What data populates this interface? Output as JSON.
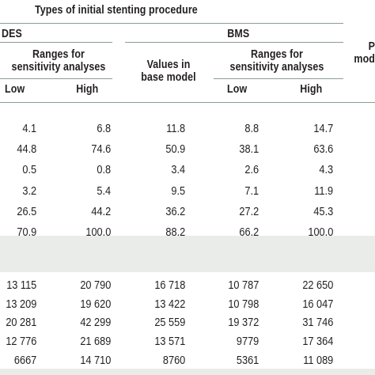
{
  "header": {
    "group_title": "Types of initial stenting procedure",
    "des": "DES",
    "bms": "BMS",
    "right_edge_line1": "P",
    "right_edge_line2": "mod",
    "des_ranges_line1": "Ranges for",
    "des_ranges_line2": "sensitivity analyses",
    "bms_base_line1": "Values in",
    "bms_base_line2": "base model",
    "bms_ranges_line1": "Ranges for",
    "bms_ranges_line2": "sensitivity analyses",
    "des_low": "Low",
    "des_high": "High",
    "bms_low": "Low",
    "bms_high": "High"
  },
  "rows_top": [
    {
      "des_low": "4.1",
      "des_high": "6.8",
      "bms_base": "11.8",
      "bms_low": "8.8",
      "bms_high": "14.7"
    },
    {
      "des_low": "44.8",
      "des_high": "74.6",
      "bms_base": "50.9",
      "bms_low": "38.1",
      "bms_high": "63.6"
    },
    {
      "des_low": "0.5",
      "des_high": "0.8",
      "bms_base": "3.4",
      "bms_low": "2.6",
      "bms_high": "4.3"
    },
    {
      "des_low": "3.2",
      "des_high": "5.4",
      "bms_base": "9.5",
      "bms_low": "7.1",
      "bms_high": "11.9"
    },
    {
      "des_low": "26.5",
      "des_high": "44.2",
      "bms_base": "36.2",
      "bms_low": "27.2",
      "bms_high": "45.3"
    },
    {
      "des_low": "70.9",
      "des_high": "100.0",
      "bms_base": "88.2",
      "bms_low": "66.2",
      "bms_high": "100.0"
    }
  ],
  "rows_bottom": [
    {
      "des_low": "13 115",
      "des_high": "20 790",
      "bms_base": "16 718",
      "bms_low": "10 787",
      "bms_high": "22 650"
    },
    {
      "des_low": "13 209",
      "des_high": "19 620",
      "bms_base": "13 422",
      "bms_low": "10 798",
      "bms_high": "16 047"
    },
    {
      "des_low": "20 281",
      "des_high": "42 299",
      "bms_base": "25 559",
      "bms_low": "19 372",
      "bms_high": "31 746"
    },
    {
      "des_low": "12 776",
      "des_high": "21 689",
      "bms_base": "13 571",
      "bms_low": "9779",
      "bms_high": "17 364"
    },
    {
      "des_low": "6667",
      "des_high": "14 710",
      "bms_base": "8760",
      "bms_low": "5361",
      "bms_high": "11 089"
    }
  ]
}
